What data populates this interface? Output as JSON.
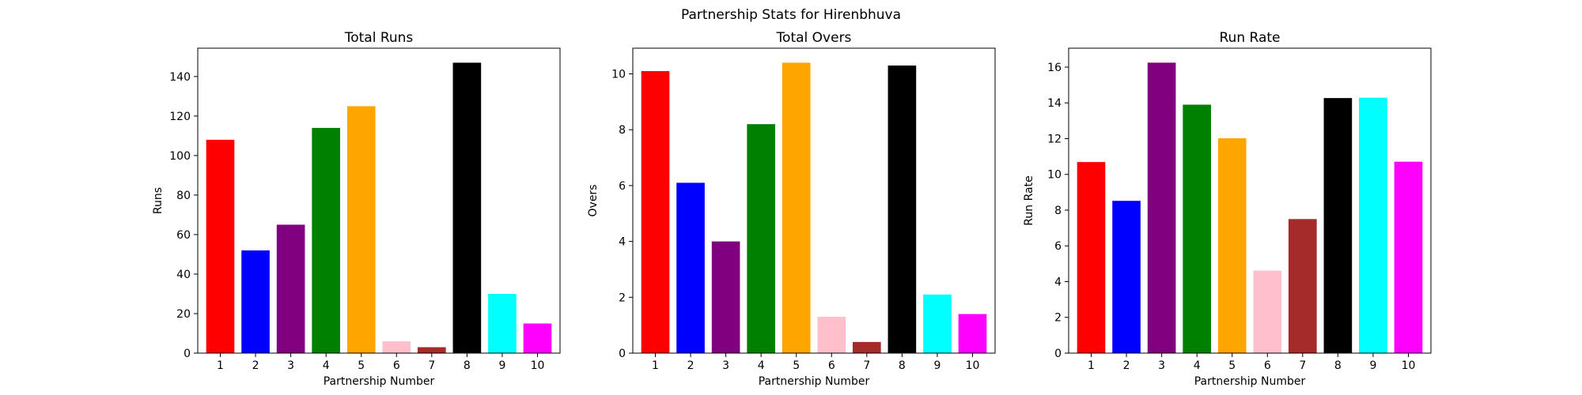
{
  "figure": {
    "suptitle": "Partnership Stats for Hirenbhuva"
  },
  "chart_data": [
    {
      "type": "bar",
      "title": "Total Runs",
      "xlabel": "Partnership Number",
      "ylabel": "Runs",
      "categories": [
        "1",
        "2",
        "3",
        "4",
        "5",
        "6",
        "7",
        "8",
        "9",
        "10"
      ],
      "values": [
        108,
        52,
        65,
        114,
        125,
        6,
        3,
        147,
        30,
        15
      ],
      "colors": [
        "#ff0000",
        "#0000ff",
        "#800080",
        "#008000",
        "#ffa500",
        "#ffc0cb",
        "#a52a2a",
        "#000000",
        "#00ffff",
        "#ff00ff"
      ],
      "ylim": [
        0,
        154.35
      ],
      "yticks": [
        0,
        20,
        40,
        60,
        80,
        100,
        120,
        140
      ]
    },
    {
      "type": "bar",
      "title": "Total Overs",
      "xlabel": "Partnership Number",
      "ylabel": "Overs",
      "categories": [
        "1",
        "2",
        "3",
        "4",
        "5",
        "6",
        "7",
        "8",
        "9",
        "10"
      ],
      "values": [
        10.1,
        6.1,
        4.0,
        8.2,
        10.4,
        1.3,
        0.4,
        10.3,
        2.1,
        1.4
      ],
      "colors": [
        "#ff0000",
        "#0000ff",
        "#800080",
        "#008000",
        "#ffa500",
        "#ffc0cb",
        "#a52a2a",
        "#000000",
        "#00ffff",
        "#ff00ff"
      ],
      "ylim": [
        0,
        10.92
      ],
      "yticks": [
        0,
        2,
        4,
        6,
        8,
        10
      ]
    },
    {
      "type": "bar",
      "title": "Run Rate",
      "xlabel": "Partnership Number",
      "ylabel": "Run Rate",
      "categories": [
        "1",
        "2",
        "3",
        "4",
        "5",
        "6",
        "7",
        "8",
        "9",
        "10"
      ],
      "values": [
        10.69,
        8.52,
        16.25,
        13.9,
        12.02,
        4.62,
        7.5,
        14.27,
        14.29,
        10.71
      ],
      "colors": [
        "#ff0000",
        "#0000ff",
        "#800080",
        "#008000",
        "#ffa500",
        "#ffc0cb",
        "#a52a2a",
        "#000000",
        "#00ffff",
        "#ff00ff"
      ],
      "ylim": [
        0,
        17.06
      ],
      "yticks": [
        0,
        2,
        4,
        6,
        8,
        10,
        12,
        14,
        16
      ]
    }
  ]
}
